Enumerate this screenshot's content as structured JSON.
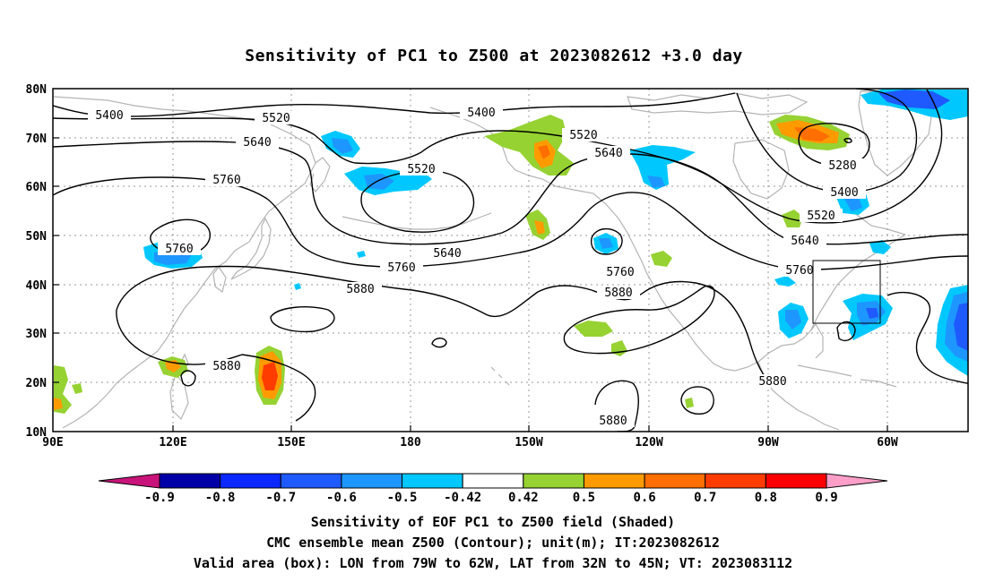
{
  "title": "Sensitivity of PC1 to Z500 at 2023082612 +3.0 day",
  "lat_ticks": [
    "80N",
    "70N",
    "60N",
    "50N",
    "40N",
    "30N",
    "20N",
    "10N"
  ],
  "lon_ticks": [
    "90E",
    "120E",
    "150E",
    "180",
    "150W",
    "120W",
    "90W",
    "60W"
  ],
  "contour_labels": [
    {
      "text": "5400",
      "id": "c5400-a"
    },
    {
      "text": "5520",
      "id": "c5520-a"
    },
    {
      "text": "5400",
      "id": "c5400-b"
    },
    {
      "text": "5640",
      "id": "c5640-a"
    },
    {
      "text": "5520",
      "id": "c5520-b"
    },
    {
      "text": "5640",
      "id": "c5640-b"
    },
    {
      "text": "5760",
      "id": "c5760-a"
    },
    {
      "text": "5520",
      "id": "c5520-c"
    },
    {
      "text": "5280",
      "id": "c5280"
    },
    {
      "text": "5400",
      "id": "c5400-c"
    },
    {
      "text": "5520",
      "id": "c5520-d"
    },
    {
      "text": "5760",
      "id": "c5760-b"
    },
    {
      "text": "5640",
      "id": "c5640-c"
    },
    {
      "text": "5760",
      "id": "c5760-c"
    },
    {
      "text": "5640",
      "id": "c5640-d"
    },
    {
      "text": "5760",
      "id": "c5760-d"
    },
    {
      "text": "5880",
      "id": "c5880-a"
    },
    {
      "text": "5760",
      "id": "c5760-e"
    },
    {
      "text": "5880",
      "id": "c5880-b"
    },
    {
      "text": "5880",
      "id": "c5880-c"
    },
    {
      "text": "5880",
      "id": "c5880-d"
    },
    {
      "text": "5880",
      "id": "c5880-e"
    }
  ],
  "colorbar": {
    "labels": [
      "-0.9",
      "-0.8",
      "-0.7",
      "-0.6",
      "-0.5",
      "-0.42",
      "0.42",
      "0.5",
      "0.6",
      "0.7",
      "0.8",
      "0.9"
    ],
    "colors": [
      "#0000a8",
      "#0a28ff",
      "#1e5aff",
      "#1e96ff",
      "#00c8ff",
      "#ffffff",
      "#96d232",
      "#ff9b00",
      "#ff6e00",
      "#ff3c00",
      "#ff0000"
    ],
    "low_extend_color": "#c8147a",
    "high_extend_color": "#ff9ec8"
  },
  "captions": {
    "line1": "Sensitivity of EOF PC1 to Z500 field (Shaded)",
    "line2": "CMC ensemble mean Z500 (Contour); unit(m); IT:2023082612",
    "line3": "Valid area (box): LON from 79W to 62W, LAT from 32N to 45N; VT: 2023083112"
  },
  "map": {
    "extent": {
      "lon": [
        "90E",
        "33W"
      ],
      "lat": [
        "10N",
        "80N"
      ]
    },
    "valid_box": {
      "lon": [
        "79W",
        "62W"
      ],
      "lat": [
        "32N",
        "45N"
      ]
    },
    "contour_interval_m": 120,
    "gridlines": true,
    "coastline_color": "#b4b4b4"
  }
}
